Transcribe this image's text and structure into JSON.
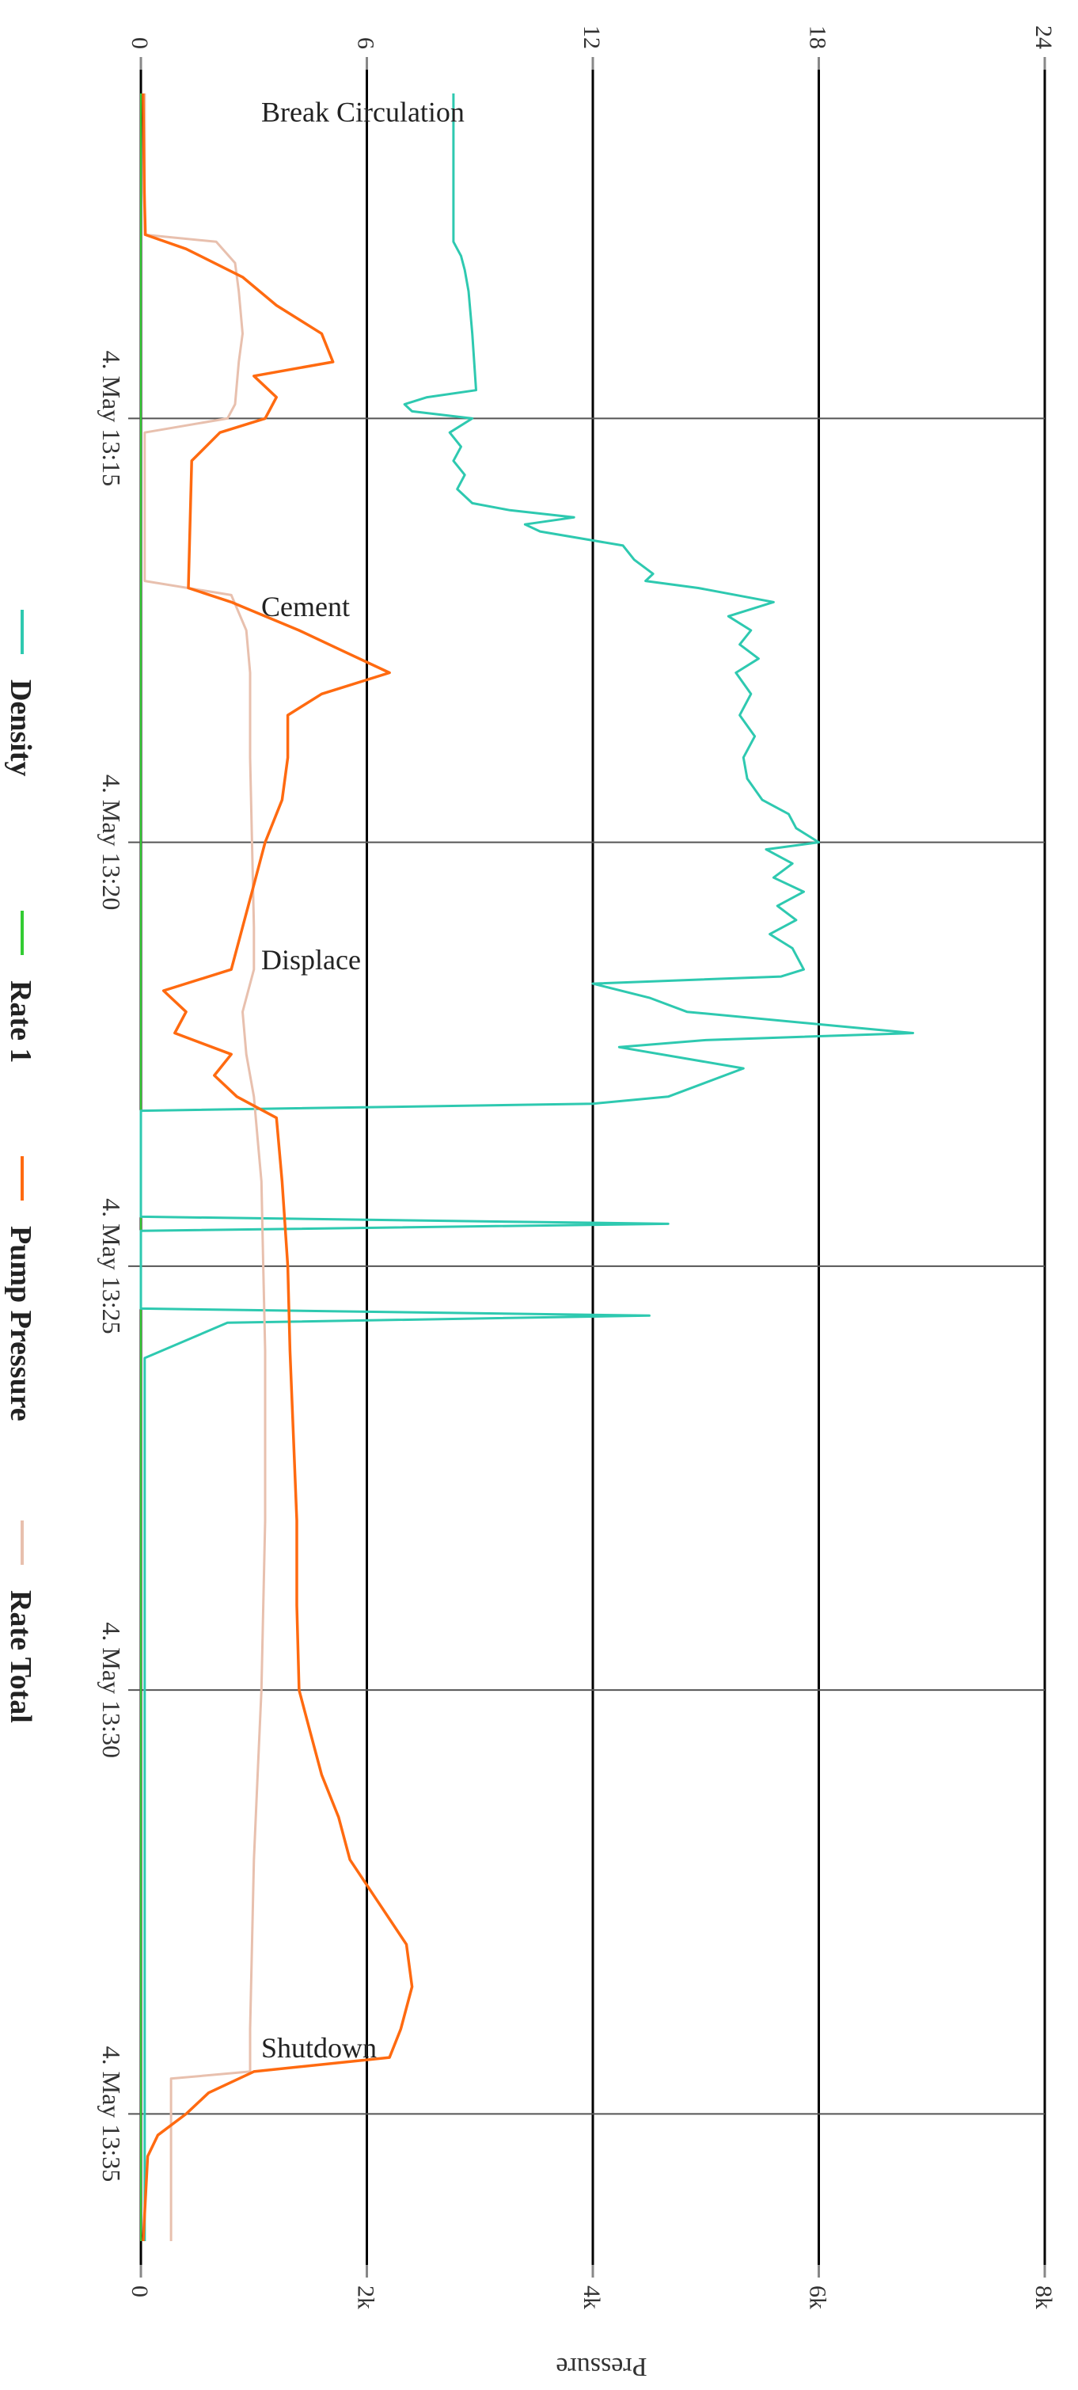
{
  "chart_data": {
    "type": "line",
    "orientation": "rotated-90-clockwise",
    "x_axis": {
      "type": "time",
      "range": [
        "13:11:10",
        "13:36:30"
      ],
      "ticks": [
        {
          "time": "13:15",
          "label": "4. May 13:15"
        },
        {
          "time": "13:20",
          "label": "4. May 13:20"
        },
        {
          "time": "13:25",
          "label": "4. May 13:25"
        },
        {
          "time": "13:30",
          "label": "4. May 13:30"
        },
        {
          "time": "13:35",
          "label": "4. May 13:35"
        }
      ]
    },
    "y_axis_pressure": {
      "title": "Pressure",
      "range": [
        0,
        8000
      ],
      "ticks": [
        0,
        2000,
        4000,
        6000,
        8000
      ],
      "tick_labels": [
        "0",
        "2k",
        "4k",
        "6k",
        "8k"
      ]
    },
    "y_axis_secondary": {
      "range": [
        0,
        24
      ],
      "ticks": [
        0,
        6,
        12,
        18,
        24
      ],
      "tick_labels": [
        "0",
        "6",
        "12",
        "18",
        "24"
      ]
    },
    "grid": true,
    "legend": {
      "placement": "bottom",
      "items": [
        {
          "name": "Density",
          "color": "#2ec9b0"
        },
        {
          "name": "Rate 1",
          "color": "#33cc33"
        },
        {
          "name": "Pump Pressure",
          "color": "#ff6a10"
        },
        {
          "name": "Rate Total",
          "color": "#e8c0ae"
        }
      ]
    },
    "annotations": [
      {
        "text": "Break Circulation",
        "time": "13:11:30"
      },
      {
        "text": "Cement",
        "time": "13:17:20"
      },
      {
        "text": "Displace",
        "time": "13:21:30"
      },
      {
        "text": "Shutdown",
        "time": "13:34:20"
      }
    ],
    "series": [
      {
        "name": "Density",
        "axis": "secondary",
        "points": [
          [
            "13:11:10",
            8.3
          ],
          [
            "13:12:55",
            8.3
          ],
          [
            "13:13:00",
            8.4
          ],
          [
            "13:13:05",
            8.5
          ],
          [
            "13:13:15",
            8.6
          ],
          [
            "13:13:30",
            8.7
          ],
          [
            "13:14:00",
            8.8
          ],
          [
            "13:14:40",
            8.9
          ],
          [
            "13:14:45",
            7.6
          ],
          [
            "13:14:50",
            7.0
          ],
          [
            "13:14:55",
            7.2
          ],
          [
            "13:15:00",
            8.8
          ],
          [
            "13:15:10",
            8.2
          ],
          [
            "13:15:20",
            8.5
          ],
          [
            "13:15:30",
            8.3
          ],
          [
            "13:15:40",
            8.6
          ],
          [
            "13:15:50",
            8.4
          ],
          [
            "13:16:00",
            8.8
          ],
          [
            "13:16:05",
            9.8
          ],
          [
            "13:16:10",
            11.5
          ],
          [
            "13:16:15",
            10.2
          ],
          [
            "13:16:20",
            10.6
          ],
          [
            "13:16:30",
            12.8
          ],
          [
            "13:16:40",
            13.1
          ],
          [
            "13:16:50",
            13.6
          ],
          [
            "13:16:55",
            13.4
          ],
          [
            "13:17:00",
            14.8
          ],
          [
            "13:17:10",
            16.8
          ],
          [
            "13:17:20",
            15.6
          ],
          [
            "13:17:30",
            16.2
          ],
          [
            "13:17:40",
            15.9
          ],
          [
            "13:17:50",
            16.4
          ],
          [
            "13:18:00",
            15.8
          ],
          [
            "13:18:15",
            16.2
          ],
          [
            "13:18:30",
            15.9
          ],
          [
            "13:18:45",
            16.3
          ],
          [
            "13:19:00",
            16.0
          ],
          [
            "13:19:15",
            16.1
          ],
          [
            "13:19:30",
            16.5
          ],
          [
            "13:19:40",
            17.2
          ],
          [
            "13:19:50",
            17.4
          ],
          [
            "13:20:00",
            18.0
          ],
          [
            "13:20:05",
            16.6
          ],
          [
            "13:20:15",
            17.3
          ],
          [
            "13:20:25",
            16.8
          ],
          [
            "13:20:35",
            17.6
          ],
          [
            "13:20:45",
            16.9
          ],
          [
            "13:20:55",
            17.4
          ],
          [
            "13:21:05",
            16.7
          ],
          [
            "13:21:15",
            17.3
          ],
          [
            "13:21:30",
            17.6
          ],
          [
            "13:21:35",
            17.0
          ],
          [
            "13:21:40",
            12.0
          ],
          [
            "13:21:50",
            13.5
          ],
          [
            "13:22:00",
            14.5
          ],
          [
            "13:22:10",
            18.5
          ],
          [
            "13:22:15",
            20.5
          ],
          [
            "13:22:20",
            15.0
          ],
          [
            "13:22:25",
            12.7
          ],
          [
            "13:22:40",
            16.0
          ],
          [
            "13:23:00",
            14.0
          ],
          [
            "13:23:05",
            12.0
          ],
          [
            "13:23:10",
            0.0
          ],
          [
            "13:24:25",
            0.0
          ],
          [
            "13:24:30",
            14.0
          ],
          [
            "13:24:35",
            0.0
          ],
          [
            "13:25:30",
            0.0
          ],
          [
            "13:25:35",
            13.5
          ],
          [
            "13:25:40",
            2.3
          ],
          [
            "13:26:05",
            0.1
          ],
          [
            "13:36:30",
            0.1
          ]
        ]
      },
      {
        "name": "Rate 1",
        "axis": "secondary",
        "points": [
          [
            "13:11:10",
            0.0
          ],
          [
            "13:36:30",
            0.0
          ]
        ]
      },
      {
        "name": "Pump Pressure",
        "axis": "pressure",
        "points": [
          [
            "13:11:10",
            20
          ],
          [
            "13:12:20",
            30
          ],
          [
            "13:12:50",
            40
          ],
          [
            "13:13:00",
            400
          ],
          [
            "13:13:20",
            900
          ],
          [
            "13:13:40",
            1200
          ],
          [
            "13:14:00",
            1600
          ],
          [
            "13:14:20",
            1700
          ],
          [
            "13:14:30",
            1000
          ],
          [
            "13:14:45",
            1200
          ],
          [
            "13:15:00",
            1100
          ],
          [
            "13:15:10",
            700
          ],
          [
            "13:15:30",
            450
          ],
          [
            "13:16:30",
            430
          ],
          [
            "13:17:00",
            420
          ],
          [
            "13:17:10",
            800
          ],
          [
            "13:17:30",
            1400
          ],
          [
            "13:17:45",
            1800
          ],
          [
            "13:18:00",
            2200
          ],
          [
            "13:18:15",
            1600
          ],
          [
            "13:18:30",
            1300
          ],
          [
            "13:19:00",
            1300
          ],
          [
            "13:19:30",
            1250
          ],
          [
            "13:20:00",
            1100
          ],
          [
            "13:20:30",
            1000
          ],
          [
            "13:21:00",
            900
          ],
          [
            "13:21:30",
            800
          ],
          [
            "13:21:45",
            200
          ],
          [
            "13:22:00",
            400
          ],
          [
            "13:22:15",
            300
          ],
          [
            "13:22:30",
            800
          ],
          [
            "13:22:45",
            650
          ],
          [
            "13:23:00",
            850
          ],
          [
            "13:23:15",
            1200
          ],
          [
            "13:24:00",
            1250
          ],
          [
            "13:25:00",
            1300
          ],
          [
            "13:26:00",
            1320
          ],
          [
            "13:27:00",
            1350
          ],
          [
            "13:28:00",
            1380
          ],
          [
            "13:29:00",
            1380
          ],
          [
            "13:30:00",
            1400
          ],
          [
            "13:30:30",
            1500
          ],
          [
            "13:31:00",
            1600
          ],
          [
            "13:31:30",
            1750
          ],
          [
            "13:32:00",
            1850
          ],
          [
            "13:32:30",
            2100
          ],
          [
            "13:33:00",
            2350
          ],
          [
            "13:33:30",
            2400
          ],
          [
            "13:34:00",
            2300
          ],
          [
            "13:34:20",
            2200
          ],
          [
            "13:34:30",
            1000
          ],
          [
            "13:34:45",
            600
          ],
          [
            "13:35:00",
            400
          ],
          [
            "13:35:15",
            150
          ],
          [
            "13:35:30",
            60
          ],
          [
            "13:36:30",
            20
          ]
        ]
      },
      {
        "name": "Rate Total",
        "axis": "secondary",
        "points": [
          [
            "13:11:10",
            0.1
          ],
          [
            "13:12:50",
            0.1
          ],
          [
            "13:12:55",
            2.0
          ],
          [
            "13:13:10",
            2.5
          ],
          [
            "13:13:30",
            2.6
          ],
          [
            "13:14:00",
            2.7
          ],
          [
            "13:14:20",
            2.6
          ],
          [
            "13:14:50",
            2.5
          ],
          [
            "13:15:00",
            2.3
          ],
          [
            "13:15:10",
            0.1
          ],
          [
            "13:16:55",
            0.1
          ],
          [
            "13:17:05",
            2.4
          ],
          [
            "13:17:30",
            2.8
          ],
          [
            "13:18:00",
            2.9
          ],
          [
            "13:18:30",
            2.9
          ],
          [
            "13:19:00",
            2.9
          ],
          [
            "13:20:00",
            2.95
          ],
          [
            "13:21:00",
            3.0
          ],
          [
            "13:21:30",
            3.0
          ],
          [
            "13:22:00",
            2.7
          ],
          [
            "13:22:30",
            2.8
          ],
          [
            "13:23:00",
            3.0
          ],
          [
            "13:23:30",
            3.1
          ],
          [
            "13:24:00",
            3.2
          ],
          [
            "13:25:00",
            3.25
          ],
          [
            "13:26:00",
            3.3
          ],
          [
            "13:28:00",
            3.3
          ],
          [
            "13:30:00",
            3.2
          ],
          [
            "13:31:00",
            3.1
          ],
          [
            "13:32:00",
            3.0
          ],
          [
            "13:33:00",
            2.95
          ],
          [
            "13:34:00",
            2.9
          ],
          [
            "13:34:30",
            2.9
          ],
          [
            "13:34:35",
            0.8
          ],
          [
            "13:36:30",
            0.8
          ]
        ]
      }
    ]
  }
}
